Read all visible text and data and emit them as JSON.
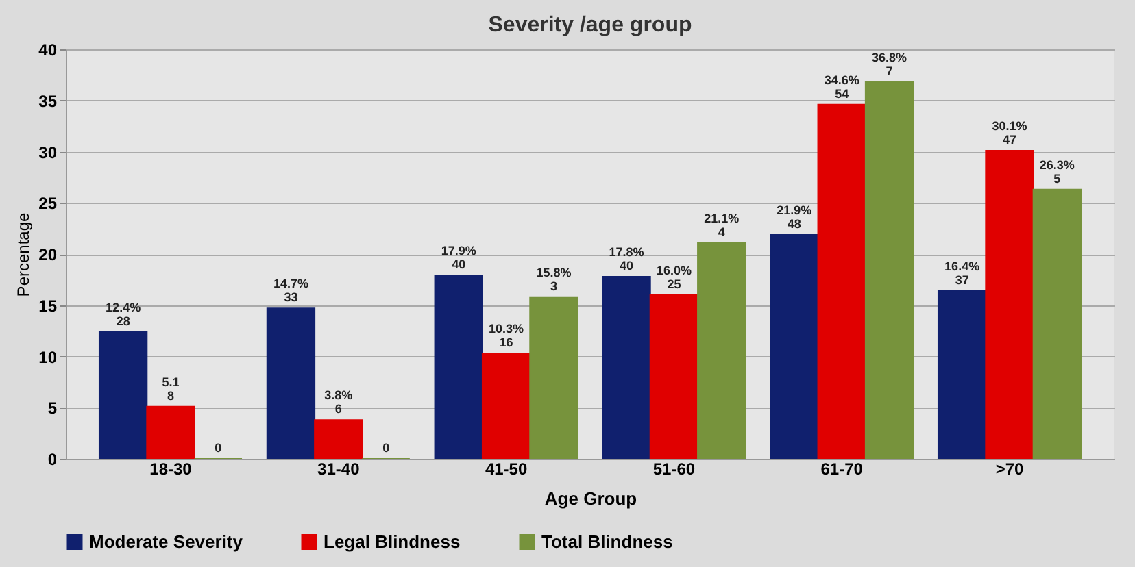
{
  "chart_data": {
    "type": "bar",
    "title": "Severity /age group",
    "xlabel": "Age Group",
    "ylabel": "Percentage",
    "categories": [
      "18-30",
      "31-40",
      "41-50",
      "51-60",
      "61-70",
      ">70"
    ],
    "series": [
      {
        "name": "Moderate Severity",
        "color": "#10206e",
        "values": [
          12.4,
          14.7,
          17.9,
          17.8,
          21.9,
          16.4
        ],
        "value_labels": [
          "12.4%\n28",
          "14.7%\n33",
          "17.9%\n40",
          "17.8%\n40",
          "21.9%\n48",
          "16.4%\n37"
        ]
      },
      {
        "name": "Legal Blindness",
        "color": "#e00000",
        "values": [
          5.1,
          3.8,
          10.3,
          16.0,
          34.6,
          30.1
        ],
        "value_labels": [
          "5.1\n8",
          "3.8%\n6",
          "10.3%\n16",
          "16.0%\n25",
          "34.6%\n54",
          "30.1%\n47"
        ]
      },
      {
        "name": "Total Blindness",
        "color": "#77933c",
        "values": [
          0,
          0,
          15.8,
          21.1,
          36.8,
          26.3
        ],
        "value_labels": [
          "0",
          "0",
          "15.8%\n3",
          "21.1%\n4",
          "36.8%\n7",
          "26.3%\n5"
        ]
      }
    ],
    "ylim": [
      0,
      40
    ],
    "yticks": [
      0,
      5,
      10,
      15,
      20,
      25,
      30,
      35,
      40
    ],
    "grid": "y",
    "legend": "bottom"
  }
}
